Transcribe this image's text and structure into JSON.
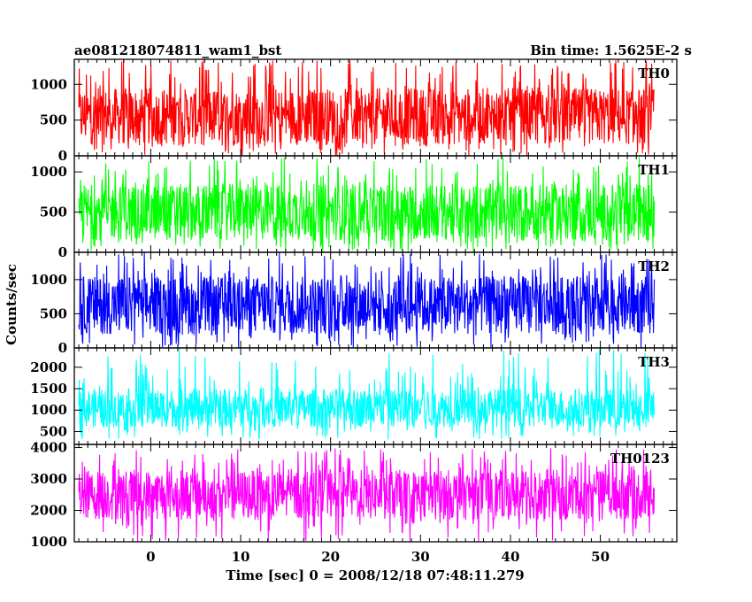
{
  "chart_data": {
    "type": "line",
    "title_left": "ae081218074811_wam1_bst",
    "title_right": "Bin time: 1.5625E-2 s",
    "xlabel": "Time [sec] 0 = 2008/12/18 07:48:11.279",
    "ylabel": "Counts/sec",
    "xlim": [
      -8.5,
      58.5
    ],
    "x_data_range": [
      -8,
      56
    ],
    "x_ticks": [
      0,
      10,
      20,
      30,
      40,
      50
    ],
    "grid": false,
    "legend": "panel labels at top-right of each panel",
    "panels": [
      {
        "name": "TH0",
        "color": "#ff0000",
        "ylim": [
          0,
          1350
        ],
        "y_ticks": [
          0,
          500,
          1000
        ],
        "typical_range": [
          150,
          950
        ],
        "max": 1350,
        "min": 0
      },
      {
        "name": "TH1",
        "color": "#00ff00",
        "ylim": [
          0,
          1200
        ],
        "y_ticks": [
          0,
          500,
          1000
        ],
        "typical_range": [
          150,
          850
        ],
        "max": 1200,
        "min": 0
      },
      {
        "name": "TH2",
        "color": "#0000ff",
        "ylim": [
          0,
          1400
        ],
        "y_ticks": [
          0,
          500,
          1000
        ],
        "typical_range": [
          200,
          1050
        ],
        "max": 1400,
        "min": 0
      },
      {
        "name": "TH3",
        "color": "#00ffff",
        "ylim": [
          200,
          2450
        ],
        "y_ticks": [
          500,
          1000,
          1500,
          2000
        ],
        "typical_range": [
          600,
          1500
        ],
        "max": 2450,
        "min": 300
      },
      {
        "name": "TH0123",
        "color": "#ff00ff",
        "ylim": [
          1000,
          4100
        ],
        "y_ticks": [
          1000,
          2000,
          3000,
          4000
        ],
        "typical_range": [
          1700,
          3300
        ],
        "max": 4000,
        "min": 1000
      }
    ]
  }
}
